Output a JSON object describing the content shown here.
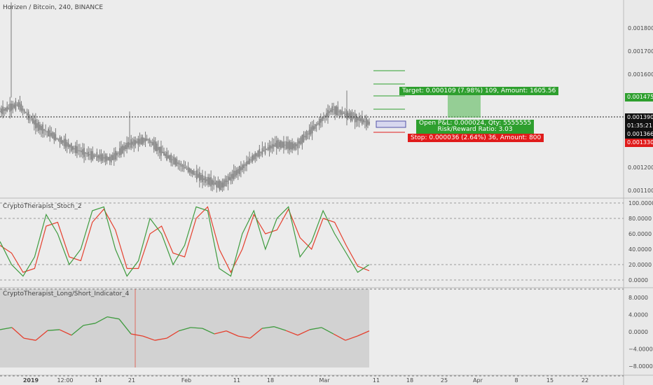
{
  "header": {
    "title": "Horizen / Bitcoin, 240, BINANCE"
  },
  "panes": {
    "stoch_title": "CryptoTherapist_Stoch_2",
    "ls_title": "CryptoTherapist_Long/Short_Indicator_4"
  },
  "price_axis": {
    "ticks": [
      "0.001800",
      "0.001700",
      "0.001600",
      "0.001500",
      "0.001400",
      "0.001300",
      "0.001200",
      "0.001100"
    ],
    "tags": {
      "target": "0.001475",
      "last": "0.001390",
      "countdown": "01:35:21",
      "entry": "0.001366",
      "stop": "0.001330"
    }
  },
  "stoch_axis": {
    "ticks": [
      "100.0000",
      "80.0000",
      "60.0000",
      "40.0000",
      "20.0000",
      "0.0000"
    ]
  },
  "ls_axis": {
    "ticks": [
      "8.0000",
      "4.0000",
      "0.0000",
      "−4.0000",
      "−8.0000"
    ]
  },
  "time_axis": {
    "ticks": [
      "2019",
      "12:00",
      "14",
      "21",
      "Feb",
      "11",
      "18",
      "Mar",
      "11",
      "18",
      "25",
      "Apr",
      "8",
      "15",
      "22"
    ]
  },
  "position": {
    "target_label": "Target: 0.000109 (7.98%) 109, Amount: 1605.56",
    "pnl_label": "Open P&L: 0.000024, Qty: 5555555",
    "rr_label": "Risk/Reward Ratio: 3.03",
    "stop_label": "Stop: 0.000036 (2.64%) 36, Amount: 800"
  },
  "colors": {
    "up": "#3f9b3f",
    "down": "#e5402e",
    "candle": "#7a7a7a",
    "target_bg": "#2e9f2e",
    "stop_bg": "#e01b1b",
    "last_bg": "#111111"
  },
  "chart_data": {
    "type": "line",
    "title": "Horizen / Bitcoin, 240, BINANCE",
    "x_ticks": [
      "2019",
      "12:00",
      "14",
      "21",
      "Feb",
      "11",
      "18",
      "Mar",
      "11",
      "18",
      "25",
      "Apr",
      "8",
      "15",
      "22"
    ],
    "price": {
      "ylim": [
        0.00107,
        0.00192
      ],
      "series_points_x_index": [
        0,
        5,
        10,
        15,
        20,
        25,
        30,
        35,
        40,
        45,
        50,
        55,
        60,
        65,
        70,
        75,
        80,
        85,
        90,
        95,
        100
      ],
      "close": [
        0.00144,
        0.00147,
        0.00138,
        0.00133,
        0.00128,
        0.00125,
        0.001235,
        0.0013,
        0.00132,
        0.00125,
        0.0012,
        0.00115,
        0.00112,
        0.00119,
        0.00126,
        0.0013,
        0.00129,
        0.00137,
        0.00145,
        0.00142,
        0.00139
      ],
      "last": 0.00139,
      "target": 0.001475,
      "entry": 0.001366,
      "stop": 0.00133
    },
    "stoch": {
      "ylim": [
        0,
        100
      ],
      "k": [
        50,
        20,
        5,
        30,
        85,
        60,
        20,
        40,
        90,
        95,
        40,
        5,
        25,
        80,
        60,
        20,
        45,
        95,
        90,
        15,
        5,
        60,
        90,
        40,
        80,
        95,
        30,
        50,
        90,
        60,
        35,
        10,
        20
      ],
      "d": [
        45,
        35,
        10,
        15,
        70,
        75,
        30,
        25,
        75,
        92,
        65,
        15,
        15,
        60,
        70,
        35,
        30,
        80,
        95,
        40,
        10,
        40,
        85,
        60,
        65,
        92,
        55,
        40,
        80,
        75,
        45,
        18,
        12
      ]
    },
    "long_short": {
      "ylim": [
        -10,
        10
      ],
      "values": [
        0.5,
        1.0,
        -1.5,
        -2.0,
        0.3,
        0.5,
        -0.8,
        1.5,
        2.0,
        3.5,
        3.0,
        -0.5,
        -1.0,
        -2.0,
        -1.5,
        0.2,
        1.0,
        0.8,
        -0.5,
        0.2,
        -1.0,
        -1.5,
        0.8,
        1.2,
        0.3,
        -0.8,
        0.5,
        1.0,
        -0.5,
        -2.0,
        -1.0,
        0.2
      ]
    }
  }
}
